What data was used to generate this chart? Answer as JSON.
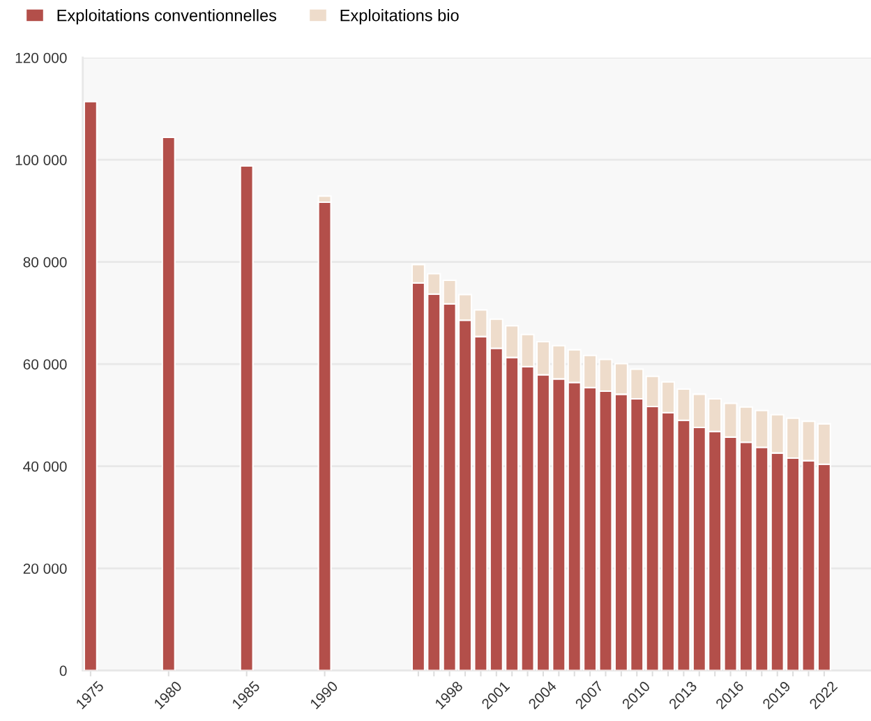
{
  "chart_data": {
    "type": "bar",
    "stacked": true,
    "x": [
      1975,
      1980,
      1985,
      1990,
      1996,
      1997,
      1998,
      1999,
      2000,
      2001,
      2002,
      2003,
      2004,
      2005,
      2006,
      2007,
      2008,
      2009,
      2010,
      2011,
      2012,
      2013,
      2014,
      2015,
      2016,
      2017,
      2018,
      2019,
      2020,
      2021,
      2022
    ],
    "series": [
      {
        "name": "Exploitations conventionnelles",
        "color": "#b34f4a",
        "values": [
          111400,
          104400,
          98800,
          91700,
          75900,
          73700,
          71800,
          68600,
          65400,
          63100,
          61300,
          59500,
          57900,
          57100,
          56400,
          55400,
          54700,
          54100,
          53200,
          51700,
          50500,
          49000,
          47600,
          46800,
          45700,
          44700,
          43700,
          42600,
          41600,
          41100,
          40400
        ]
      },
      {
        "name": "Exploitations bio",
        "color": "#eedccb",
        "values": [
          null,
          null,
          null,
          1200,
          3600,
          4000,
          4600,
          5000,
          5200,
          5700,
          6200,
          6300,
          6500,
          6500,
          6400,
          6300,
          6200,
          6000,
          5800,
          5900,
          6000,
          6100,
          6500,
          6400,
          6600,
          6900,
          7200,
          7500,
          7800,
          7700,
          7900
        ]
      }
    ],
    "xlim": [
      1974.5,
      2025
    ],
    "xticks": [
      1975,
      1980,
      1985,
      1990,
      {
        "value": 1996,
        "label": null
      },
      {
        "value": 1997,
        "label": null
      },
      1998,
      {
        "value": 1999,
        "label": null
      },
      {
        "value": 2000,
        "label": null
      },
      2001,
      {
        "value": 2002,
        "label": null
      },
      {
        "value": 2003,
        "label": null
      },
      2004,
      {
        "value": 2005,
        "label": null
      },
      {
        "value": 2006,
        "label": null
      },
      2007,
      {
        "value": 2008,
        "label": null
      },
      {
        "value": 2009,
        "label": null
      },
      2010,
      {
        "value": 2011,
        "label": null
      },
      {
        "value": 2012,
        "label": null
      },
      2013,
      {
        "value": 2014,
        "label": null
      },
      {
        "value": 2015,
        "label": null
      },
      2016,
      {
        "value": 2017,
        "label": null
      },
      {
        "value": 2018,
        "label": null
      },
      2019,
      {
        "value": 2020,
        "label": null
      },
      {
        "value": 2021,
        "label": null
      },
      2022
    ],
    "ylim": [
      0,
      120000
    ],
    "yticks": [
      0,
      {
        "value": 20000,
        "label": "20 000"
      },
      {
        "value": 40000,
        "label": "40 000"
      },
      {
        "value": 60000,
        "label": "60 000"
      },
      {
        "value": 80000,
        "label": "80 000"
      },
      {
        "value": 100000,
        "label": "100 000"
      },
      {
        "value": 120000,
        "label": "120 000"
      }
    ],
    "grid": "y",
    "legend": "top left"
  }
}
